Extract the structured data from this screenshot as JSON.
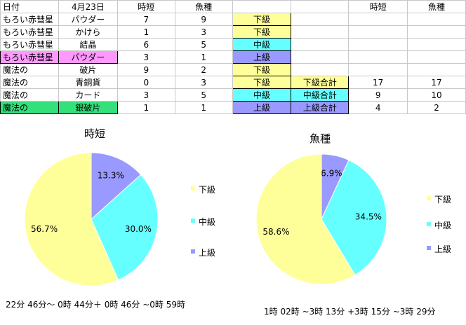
{
  "sheet": {
    "header": [
      "日付",
      "4月23日",
      "時短",
      "魚種",
      "",
      "",
      "時短",
      "魚種"
    ],
    "rows": [
      {
        "cells": [
          "もろい赤彗星",
          "パウダー",
          "7",
          "9",
          "下級",
          "",
          "",
          ""
        ],
        "fills": [
          "",
          "",
          "",
          "",
          "y",
          "",
          "",
          ""
        ]
      },
      {
        "cells": [
          "もろい赤彗星",
          "かけら",
          "1",
          "3",
          "下級",
          "",
          "",
          ""
        ],
        "fills": [
          "",
          "",
          "",
          "",
          "y",
          "",
          "",
          ""
        ]
      },
      {
        "cells": [
          "もろい赤彗星",
          "結晶",
          "6",
          "5",
          "中級",
          "",
          "",
          ""
        ],
        "fills": [
          "",
          "",
          "",
          "",
          "c",
          "",
          "",
          ""
        ]
      },
      {
        "cells": [
          "もろい赤彗星",
          "パウダー",
          "3",
          "1",
          "上級",
          "",
          "",
          ""
        ],
        "fills": [
          "pk",
          "pk",
          "",
          "",
          "p",
          "",
          "",
          ""
        ]
      },
      {
        "cells": [
          "魔法の",
          "破片",
          "9",
          "2",
          "下級",
          "",
          "",
          ""
        ],
        "fills": [
          "",
          "",
          "",
          "",
          "y",
          "",
          "",
          ""
        ]
      },
      {
        "cells": [
          "魔法の",
          "青銅貨",
          "0",
          "3",
          "下級",
          "下級合計",
          "17",
          "17"
        ],
        "fills": [
          "",
          "",
          "",
          "",
          "y",
          "y",
          "",
          ""
        ]
      },
      {
        "cells": [
          "魔法の",
          "カード",
          "3",
          "5",
          "中級",
          "中級合計",
          "9",
          "10"
        ],
        "fills": [
          "",
          "",
          "",
          "",
          "c",
          "c",
          "",
          ""
        ]
      },
      {
        "cells": [
          "魔法の",
          "銀破片",
          "1",
          "1",
          "上級",
          "上級合計",
          "4",
          "2"
        ],
        "fills": [
          "g",
          "g",
          "",
          "",
          "p",
          "p",
          "",
          ""
        ]
      }
    ]
  },
  "colors": {
    "y": "#ffff99",
    "c": "#66ffff",
    "p": "#9999ff",
    "pk": "#ff99ff",
    "g": "#33e07a"
  },
  "chart_data": [
    {
      "type": "pie",
      "title": "時短",
      "categories": [
        "下級",
        "中級",
        "上級"
      ],
      "values": [
        17,
        9,
        4
      ],
      "labels": [
        "56.7%",
        "30.0%",
        "13.3%"
      ],
      "colors": [
        "#ffff99",
        "#66ffff",
        "#9999ff"
      ],
      "legend": "right"
    },
    {
      "type": "pie",
      "title": "魚種",
      "categories": [
        "下級",
        "中級",
        "上級"
      ],
      "values": [
        17,
        10,
        2
      ],
      "labels": [
        "58.6%",
        "34.5%",
        "6.9%"
      ],
      "colors": [
        "#ffff99",
        "#66ffff",
        "#9999ff"
      ],
      "legend": "right"
    }
  ],
  "notes": {
    "left": "22分 46分〜 0時 44分＋ 0時 46分 ~0時 59時",
    "right": "1時 02時 ~3時 13分 +3時 15分 ~3時 29分"
  }
}
